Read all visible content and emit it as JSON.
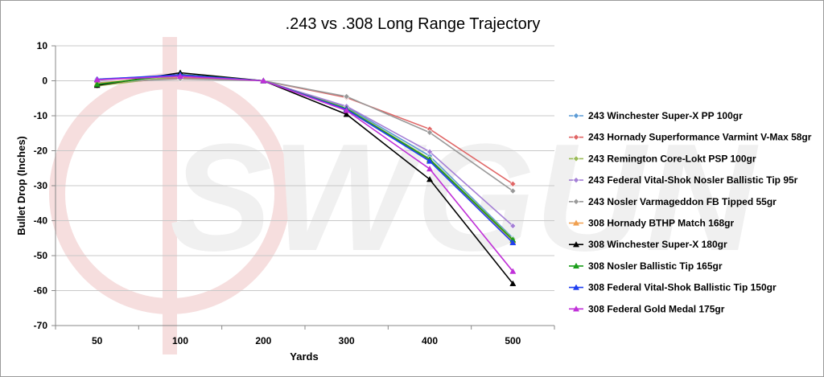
{
  "chart_data": {
    "type": "line",
    "title": ".243 vs .308 Long Range Trajectory",
    "xlabel": "Yards",
    "ylabel": "Bullet Drop (Inches)",
    "categories": [
      "50",
      "100",
      "200",
      "300",
      "400",
      "500"
    ],
    "ylim": [
      -70,
      10
    ],
    "yticks": [
      10,
      0,
      -10,
      -20,
      -30,
      -40,
      -50,
      -60,
      -70
    ],
    "grid": true,
    "legend_position": "right",
    "watermark": "SWGUN",
    "series": [
      {
        "name": "243 Winchester Super-X PP 100gr",
        "color": "#5b9bd5",
        "marker": "diamond",
        "values": [
          0.5,
          1.5,
          0,
          -7.5,
          -21.5,
          -45
        ]
      },
      {
        "name": "243 Hornady Superformance Varmint V-Max 58gr",
        "color": "#e06666",
        "marker": "diamond",
        "values": [
          -1,
          0.9,
          0,
          -4.8,
          -13.8,
          -29.5
        ]
      },
      {
        "name": "243 Remington Core-Lokt PSP 100gr",
        "color": "#9bbb59",
        "marker": "diamond",
        "values": [
          -1.5,
          1.4,
          0,
          -7.8,
          -22.3,
          -45.3
        ]
      },
      {
        "name": "243 Federal Vital-Shok Nosler Ballistic Tip 95r",
        "color": "#a47fd6",
        "marker": "diamond",
        "values": [
          0.2,
          1.6,
          0,
          -7.3,
          -20.3,
          -41.5
        ]
      },
      {
        "name": "243 Nosler Varmageddon FB Tipped 55gr",
        "color": "#999999",
        "marker": "diamond",
        "values": [
          -0.5,
          0.6,
          0,
          -4.5,
          -14.8,
          -31.5
        ]
      },
      {
        "name": "308 Hornady BTHP Match 168gr",
        "color": "#f0a050",
        "marker": "triangle",
        "values": [
          -0.8,
          1.8,
          0,
          -8.3,
          -22.8,
          -45.8
        ]
      },
      {
        "name": "308 Winchester Super-X 180gr",
        "color": "#000000",
        "marker": "triangle",
        "values": [
          -1.3,
          2.3,
          0,
          -9.6,
          -28.2,
          -58
        ]
      },
      {
        "name": "308 Nosler Ballistic Tip 165gr",
        "color": "#1a9e1a",
        "marker": "triangle",
        "values": [
          -1,
          1.8,
          0,
          -8,
          -22.5,
          -45.5
        ]
      },
      {
        "name": "308 Federal Vital-Shok Ballistic Tip 150gr",
        "color": "#1f3ff0",
        "marker": "triangle",
        "values": [
          0.4,
          1.7,
          0,
          -8.2,
          -23,
          -46.3
        ]
      },
      {
        "name": "308 Federal Gold Medal 175gr",
        "color": "#c030d8",
        "marker": "triangle",
        "values": [
          0.3,
          1.3,
          0,
          -8.5,
          -25.2,
          -54.5
        ]
      }
    ]
  }
}
